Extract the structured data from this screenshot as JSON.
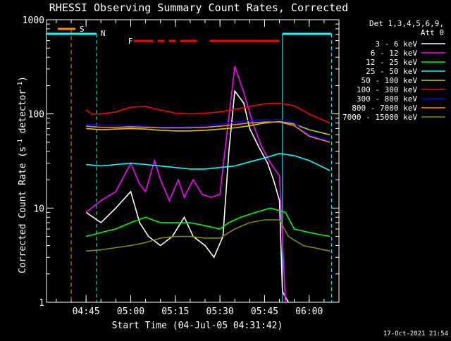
{
  "chart_data": {
    "type": "line",
    "title": "RHESSI Observing Summary Count Rates, Corrected",
    "xlabel": "Start Time (04-Jul-05 04:31:42)",
    "ylabel": "Corrected Count Rate (s^-1 detector^-1)",
    "ylabel_main": "Corrected Count Rate (s",
    "ylabel_sup1": "-1",
    "ylabel_mid": " detector",
    "ylabel_sup2": "-1",
    "ylabel_end": ")",
    "yscale": "log",
    "ylim": [
      1,
      1000
    ],
    "xlim": [
      "04:31:42",
      "06:10:00"
    ],
    "x_ticks": [
      "04:45",
      "05:00",
      "05:15",
      "05:30",
      "05:45",
      "06:00"
    ],
    "y_ticks": [
      "1",
      "10",
      "100",
      "1000"
    ],
    "grid": false,
    "legend_placement": "top-right",
    "legend_header": [
      "Det 1,3,4,5,6,9,",
      "Att 0"
    ],
    "timestamp": "17-Oct-2021 21:54",
    "flag_labels": {
      "S": "S",
      "N": "N",
      "F": "F"
    },
    "flag_colors": {
      "S": "#ff8c00",
      "N": "#00ffff",
      "F": "#ff0000"
    },
    "markers": {
      "saa_line": "04:40",
      "night_start": "04:48:30",
      "night_end_1": "05:51",
      "night_end_2": "06:07:30"
    },
    "series": [
      {
        "name": "3 - 6 keV",
        "color": "#ffffff",
        "points": [
          [
            "04:45",
            9
          ],
          [
            "04:50",
            7
          ],
          [
            "04:55",
            10
          ],
          [
            "05:00",
            15
          ],
          [
            "05:03",
            7
          ],
          [
            "05:06",
            5
          ],
          [
            "05:10",
            4
          ],
          [
            "05:14",
            5
          ],
          [
            "05:18",
            8
          ],
          [
            "05:21",
            5
          ],
          [
            "05:25",
            4
          ],
          [
            "05:28",
            3
          ],
          [
            "05:31",
            5
          ],
          [
            "05:33",
            40
          ],
          [
            "05:35",
            175
          ],
          [
            "05:38",
            130
          ],
          [
            "05:40",
            70
          ],
          [
            "05:43",
            45
          ],
          [
            "05:46",
            30
          ],
          [
            "05:48",
            20
          ],
          [
            "05:50",
            12
          ],
          [
            "05:51",
            1.3
          ],
          [
            "05:53",
            1.0
          ]
        ]
      },
      {
        "name": "6 - 12 keV",
        "color": "#ff00ff",
        "points": [
          [
            "04:45",
            9
          ],
          [
            "04:50",
            12
          ],
          [
            "04:55",
            15
          ],
          [
            "05:00",
            30
          ],
          [
            "05:03",
            18
          ],
          [
            "05:05",
            15
          ],
          [
            "05:08",
            32
          ],
          [
            "05:10",
            20
          ],
          [
            "05:13",
            12
          ],
          [
            "05:16",
            20
          ],
          [
            "05:18",
            13
          ],
          [
            "05:21",
            20
          ],
          [
            "05:24",
            14
          ],
          [
            "05:27",
            13
          ],
          [
            "05:30",
            14
          ],
          [
            "05:32",
            50
          ],
          [
            "05:35",
            320
          ],
          [
            "05:38",
            170
          ],
          [
            "05:41",
            80
          ],
          [
            "05:44",
            45
          ],
          [
            "05:47",
            30
          ],
          [
            "05:50",
            22
          ],
          [
            "05:52",
            1.0
          ]
        ]
      },
      {
        "name": "12 - 25 keV",
        "color": "#00ff00",
        "points": [
          [
            "04:45",
            5
          ],
          [
            "04:50",
            5.5
          ],
          [
            "04:55",
            6
          ],
          [
            "05:00",
            7
          ],
          [
            "05:05",
            8
          ],
          [
            "05:10",
            7
          ],
          [
            "05:15",
            7
          ],
          [
            "05:20",
            7
          ],
          [
            "05:25",
            6.5
          ],
          [
            "05:30",
            6
          ],
          [
            "05:33",
            7
          ],
          [
            "05:37",
            8
          ],
          [
            "05:42",
            9
          ],
          [
            "05:47",
            10
          ],
          [
            "05:52",
            9
          ],
          [
            "05:55",
            6
          ],
          [
            "06:00",
            5.5
          ],
          [
            "06:07",
            5
          ]
        ]
      },
      {
        "name": "25 - 50 keV",
        "color": "#00ffff",
        "points": [
          [
            "04:45",
            29
          ],
          [
            "04:50",
            28
          ],
          [
            "04:55",
            29
          ],
          [
            "05:00",
            30
          ],
          [
            "05:05",
            29
          ],
          [
            "05:10",
            28
          ],
          [
            "05:15",
            27
          ],
          [
            "05:20",
            26
          ],
          [
            "05:25",
            26
          ],
          [
            "05:30",
            27
          ],
          [
            "05:35",
            28
          ],
          [
            "05:40",
            31
          ],
          [
            "05:45",
            34
          ],
          [
            "05:50",
            38
          ],
          [
            "05:55",
            36
          ],
          [
            "06:00",
            32
          ],
          [
            "06:07",
            25
          ]
        ]
      },
      {
        "name": "50 - 100 keV",
        "color": "#cccc00",
        "points": [
          [
            "04:45",
            70
          ],
          [
            "04:50",
            68
          ],
          [
            "04:55",
            69
          ],
          [
            "05:00",
            70
          ],
          [
            "05:05",
            69
          ],
          [
            "05:10",
            67
          ],
          [
            "05:15",
            66
          ],
          [
            "05:20",
            66
          ],
          [
            "05:25",
            67
          ],
          [
            "05:30",
            69
          ],
          [
            "05:35",
            71
          ],
          [
            "05:40",
            75
          ],
          [
            "05:45",
            80
          ],
          [
            "05:50",
            83
          ],
          [
            "05:55",
            78
          ],
          [
            "06:00",
            68
          ],
          [
            "06:07",
            60
          ]
        ]
      },
      {
        "name": "100 - 300 keV",
        "color": "#ff0000",
        "points": [
          [
            "04:45",
            110
          ],
          [
            "04:47",
            100
          ],
          [
            "04:50",
            100
          ],
          [
            "04:55",
            105
          ],
          [
            "05:00",
            118
          ],
          [
            "05:05",
            120
          ],
          [
            "05:10",
            110
          ],
          [
            "05:15",
            102
          ],
          [
            "05:20",
            100
          ],
          [
            "05:25",
            102
          ],
          [
            "05:30",
            105
          ],
          [
            "05:35",
            112
          ],
          [
            "05:40",
            120
          ],
          [
            "05:45",
            128
          ],
          [
            "05:50",
            130
          ],
          [
            "05:55",
            122
          ],
          [
            "06:00",
            100
          ],
          [
            "06:07",
            80
          ]
        ]
      },
      {
        "name": "300 - 800 keV",
        "color": "#0000ff",
        "points": [
          [
            "04:45",
            78
          ],
          [
            "04:50",
            76
          ],
          [
            "04:55",
            76
          ],
          [
            "05:00",
            76
          ],
          [
            "05:05",
            74
          ],
          [
            "05:10",
            72
          ],
          [
            "05:15",
            72
          ],
          [
            "05:20",
            73
          ],
          [
            "05:25",
            75
          ],
          [
            "05:30",
            78
          ],
          [
            "05:35",
            82
          ],
          [
            "05:40",
            85
          ],
          [
            "05:45",
            87
          ],
          [
            "05:50",
            87
          ],
          [
            "05:55",
            80
          ],
          [
            "06:00",
            60
          ],
          [
            "06:07",
            52
          ]
        ]
      },
      {
        "name": "800 - 7000 keV",
        "color": "#ff8c00",
        "points": [
          [
            "04:45",
            74
          ],
          [
            "04:50",
            72
          ],
          [
            "04:55",
            72
          ],
          [
            "05:00",
            73
          ],
          [
            "05:05",
            72
          ],
          [
            "05:10",
            71
          ],
          [
            "05:15",
            71
          ],
          [
            "05:20",
            71
          ],
          [
            "05:25",
            72
          ],
          [
            "05:30",
            74
          ],
          [
            "05:35",
            77
          ],
          [
            "05:40",
            80
          ],
          [
            "05:45",
            82
          ],
          [
            "05:50",
            82
          ],
          [
            "05:55",
            75
          ],
          [
            "06:00",
            58
          ],
          [
            "06:07",
            50
          ]
        ]
      },
      {
        "name": "7000 - 15000 keV",
        "color": "#888800",
        "points": [
          [
            "04:45",
            3.5
          ],
          [
            "04:50",
            3.6
          ],
          [
            "04:55",
            3.8
          ],
          [
            "05:00",
            4.0
          ],
          [
            "05:05",
            4.3
          ],
          [
            "05:10",
            4.8
          ],
          [
            "05:15",
            5.0
          ],
          [
            "05:20",
            5.0
          ],
          [
            "05:25",
            4.8
          ],
          [
            "05:30",
            4.8
          ],
          [
            "05:35",
            6
          ],
          [
            "05:40",
            7
          ],
          [
            "05:45",
            7.5
          ],
          [
            "05:50",
            7.5
          ],
          [
            "05:53",
            5
          ],
          [
            "05:58",
            4
          ],
          [
            "06:07",
            3.5
          ]
        ]
      }
    ]
  }
}
